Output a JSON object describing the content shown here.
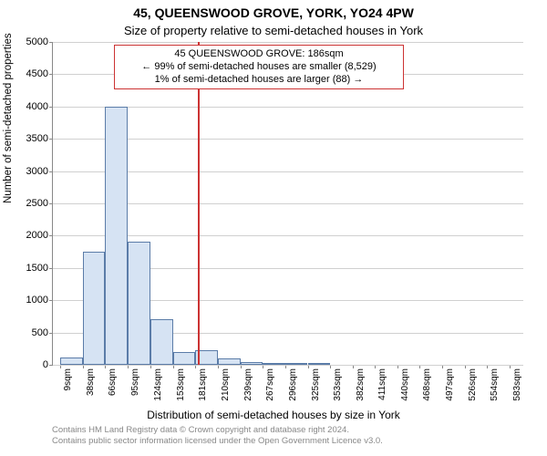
{
  "title_main": "45, QUEENSWOOD GROVE, YORK, YO24 4PW",
  "title_sub": "Size of property relative to semi-detached houses in York",
  "annotation": {
    "line1": "45 QUEENSWOOD GROVE: 186sqm",
    "line2": "← 99% of semi-detached houses are smaller (8,529)",
    "line3": "1% of semi-detached houses are larger (88) →",
    "border_color": "#cc3333",
    "fontsize": 11
  },
  "ylabel": "Number of semi-detached properties",
  "xlabel": "Distribution of semi-detached houses by size in York",
  "chart": {
    "type": "histogram",
    "background_color": "#ffffff",
    "grid_color": "#d0d0d0",
    "axis_color": "#888888",
    "bar_fill": "#d6e3f3",
    "bar_border": "#5b7ca8",
    "indicator_color": "#cc3333",
    "indicator_value": 186,
    "ylim": [
      0,
      5000
    ],
    "ytick_step": 500,
    "yticks": [
      0,
      500,
      1000,
      1500,
      2000,
      2500,
      3000,
      3500,
      4000,
      4500,
      5000
    ],
    "ylabel_fontsize": 11.5,
    "xlabel_fontsize": 12,
    "tick_fontsize": 11,
    "xtick_fontsize": 10,
    "xlim": [
      0,
      600
    ],
    "bin_width": 29,
    "bin_edges": [
      9,
      38,
      66,
      95,
      124,
      153,
      181,
      210,
      239,
      267,
      296,
      325,
      353,
      382,
      411,
      440,
      468,
      497,
      526,
      554,
      583
    ],
    "xtick_labels": [
      "9sqm",
      "38sqm",
      "66sqm",
      "95sqm",
      "124sqm",
      "153sqm",
      "181sqm",
      "210sqm",
      "239sqm",
      "267sqm",
      "296sqm",
      "325sqm",
      "353sqm",
      "382sqm",
      "411sqm",
      "440sqm",
      "468sqm",
      "497sqm",
      "526sqm",
      "554sqm",
      "583sqm"
    ],
    "values": [
      110,
      1750,
      4000,
      1900,
      700,
      200,
      220,
      100,
      40,
      30,
      12,
      8,
      0,
      0,
      0,
      0,
      0,
      0,
      0,
      0
    ]
  },
  "footer": {
    "line1": "Contains HM Land Registry data © Crown copyright and database right 2024.",
    "line2": "Contains public sector information licensed under the Open Government Licence v3.0.",
    "color": "#888888",
    "fontsize": 9.5
  }
}
